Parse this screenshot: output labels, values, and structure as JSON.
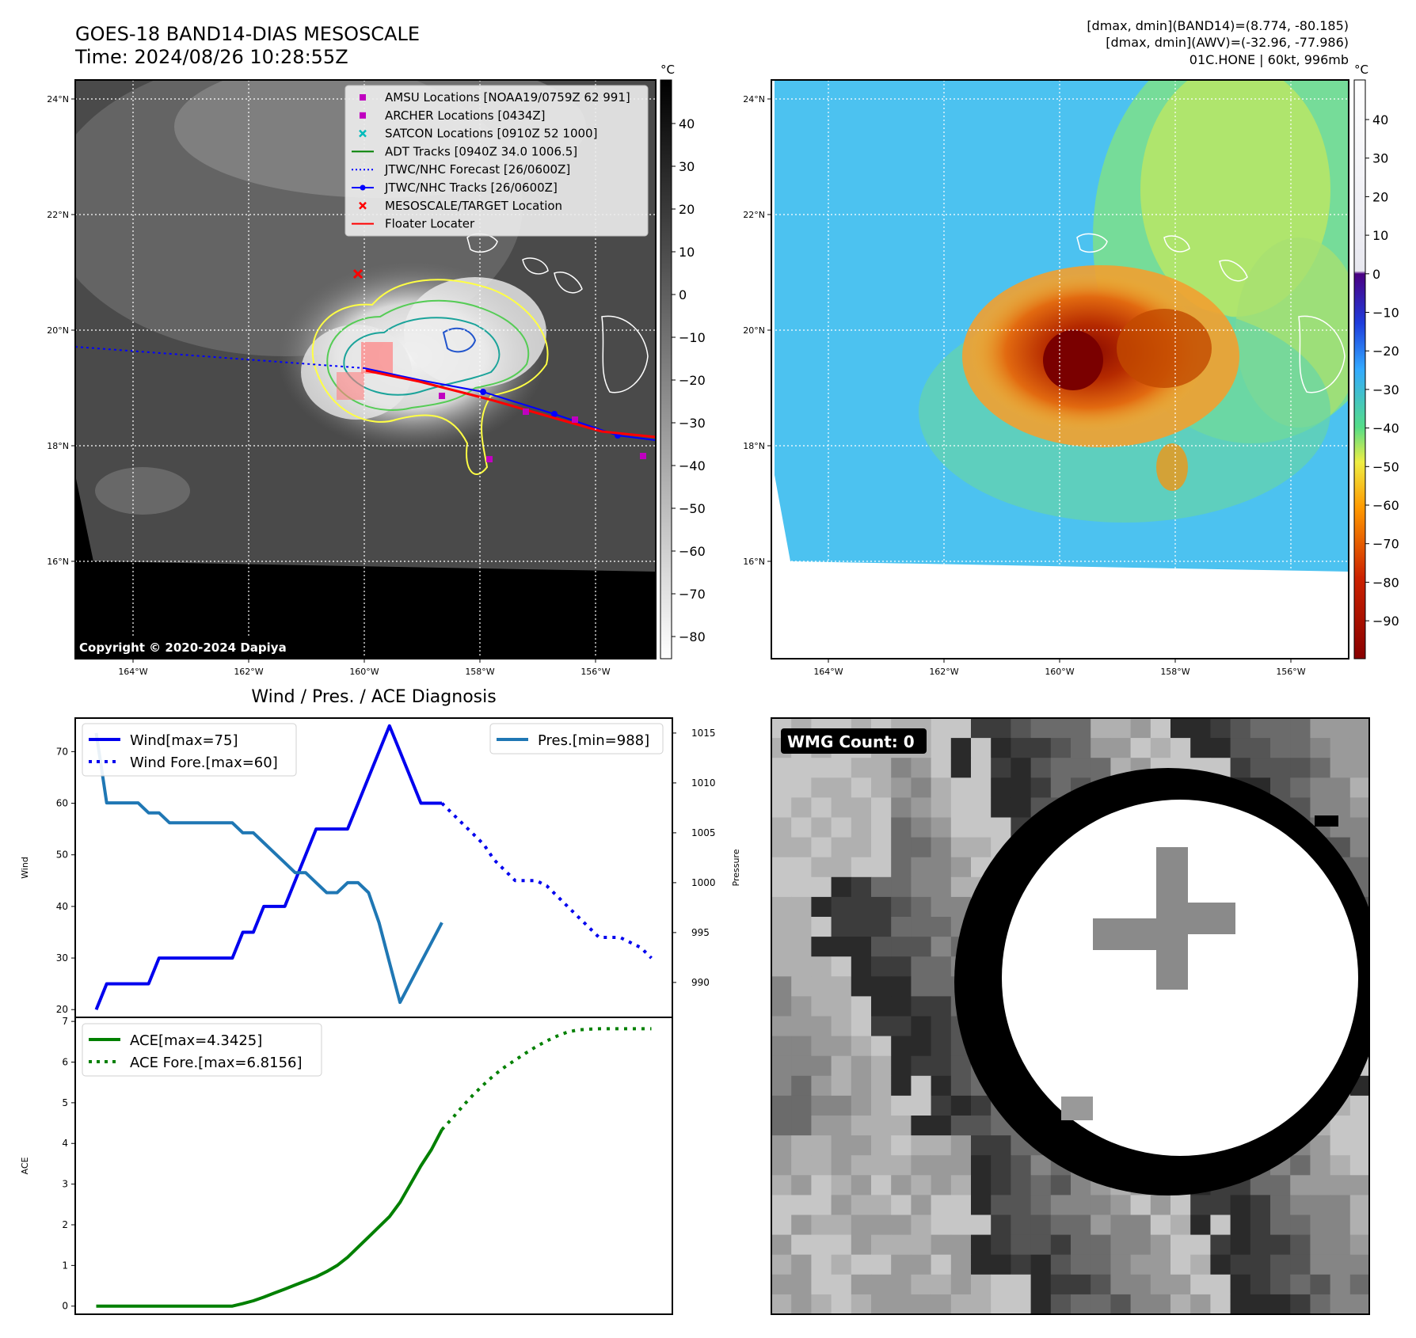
{
  "header": {
    "title_line1": "GOES-18 BAND14-DIAS MESOSCALE",
    "title_line2": "Time: 2024/08/26 10:28:55Z",
    "right_line1": "[dmax, dmin](BAND14)=(8.774, -80.185)",
    "right_line2": "[dmax, dmin](AWV)=(-32.96, -77.986)",
    "right_line3": "01C.HONE | 60kt, 996mb"
  },
  "colors": {
    "wind": "#0000ee",
    "pressure": "#1f77b4",
    "ace": "#008000",
    "adt": "#008000",
    "forecast_track": "#0000ff",
    "best_track": "#0000ff",
    "floater": "#ff0000",
    "target": "#ff0000",
    "amsu": "#c000c0",
    "archer": "#c000c0",
    "satcon": "#00bbbb",
    "contour_yellow": "#ffff44",
    "contour_green": "#55cc55",
    "contour_teal": "#1aa39a",
    "contour_blue": "#2255cc"
  },
  "ir_map": {
    "unit_label": "°C",
    "lat_ticks": [
      "24°N",
      "22°N",
      "20°N",
      "18°N",
      "16°N"
    ],
    "lon_ticks": [
      "164°W",
      "162°W",
      "160°W",
      "158°W",
      "156°W"
    ],
    "colorbar_ticks": [
      "40",
      "30",
      "20",
      "10",
      "0",
      "−10",
      "−20",
      "−30",
      "−40",
      "−50",
      "−60",
      "−70",
      "−80"
    ],
    "copyright": "Copyright © 2020-2024 Dapiya",
    "legend": [
      {
        "label": "AMSU Locations [NOAA19/0759Z 62 991]",
        "symbol": "square",
        "color_key": "amsu"
      },
      {
        "label": "ARCHER Locations [0434Z]",
        "symbol": "square",
        "color_key": "archer"
      },
      {
        "label": "SATCON Locations [0910Z 52 1000]",
        "symbol": "x",
        "color_key": "satcon"
      },
      {
        "label": "ADT Tracks [0940Z 34.0 1006.5]",
        "symbol": "line",
        "color_key": "adt"
      },
      {
        "label": "JTWC/NHC Forecast [26/0600Z]",
        "symbol": "dotted",
        "color_key": "forecast_track"
      },
      {
        "label": "JTWC/NHC Tracks [26/0600Z]",
        "symbol": "line-dot",
        "color_key": "best_track"
      },
      {
        "label": "MESOSCALE/TARGET Location",
        "symbol": "x",
        "color_key": "target"
      },
      {
        "label": "Floater Locater",
        "symbol": "line",
        "color_key": "floater"
      }
    ]
  },
  "awv_map": {
    "unit_label": "°C",
    "lat_ticks": [
      "24°N",
      "22°N",
      "20°N",
      "18°N",
      "16°N"
    ],
    "lon_ticks": [
      "164°W",
      "162°W",
      "160°W",
      "158°W",
      "156°W"
    ],
    "colorbar_ticks": [
      "40",
      "30",
      "20",
      "10",
      "0",
      "−10",
      "−20",
      "−30",
      "−40",
      "−50",
      "−60",
      "−70",
      "−80",
      "−90"
    ]
  },
  "wmg": {
    "label": "WMG Count: 0"
  },
  "chart_data": [
    {
      "type": "line",
      "title": "Wind / Pres. / ACE Diagnosis",
      "ylabel": "Wind",
      "ylabel_right": "Pressure",
      "ylim": [
        18.5,
        76.5
      ],
      "ylim_right": [
        986.5,
        1016.5
      ],
      "xlim": [
        -1,
        56
      ],
      "y_ticks": [
        "20",
        "30",
        "40",
        "50",
        "60",
        "70"
      ],
      "y_ticks_right": [
        "990",
        "995",
        "1000",
        "1005",
        "1010",
        "1015"
      ],
      "series": [
        {
          "name": "Wind[max=75]",
          "axis": "left",
          "style": "solid",
          "color_key": "wind",
          "x": [
            1,
            2,
            3,
            4,
            5,
            6,
            7,
            8,
            9,
            10,
            11,
            12,
            13,
            14,
            15,
            16,
            17,
            18,
            19,
            20,
            21,
            22,
            23,
            24,
            25,
            26,
            27,
            28,
            29,
            30,
            31,
            32,
            33,
            34
          ],
          "values": [
            20,
            25,
            25,
            25,
            25,
            25,
            30,
            30,
            30,
            30,
            30,
            30,
            30,
            30,
            35,
            35,
            40,
            40,
            40,
            45,
            50,
            55,
            55,
            55,
            55,
            60,
            65,
            70,
            75,
            70,
            65,
            60,
            60,
            60
          ]
        },
        {
          "name": "Wind Fore.[max=60]",
          "axis": "left",
          "style": "dotted",
          "color_key": "wind",
          "x": [
            34,
            35,
            36,
            37,
            38,
            39,
            40,
            41,
            42,
            43,
            44,
            45,
            46,
            47,
            48,
            49,
            50,
            51,
            52,
            53,
            54
          ],
          "values": [
            60,
            58,
            56,
            54,
            52,
            49,
            47,
            45,
            45,
            45,
            44,
            42,
            40,
            38,
            36,
            34,
            34,
            34,
            33,
            32,
            30
          ]
        },
        {
          "name": "Pres.[min=988]",
          "axis": "right",
          "style": "solid",
          "color_key": "pressure",
          "x": [
            1,
            2,
            3,
            4,
            5,
            6,
            7,
            8,
            9,
            10,
            11,
            12,
            13,
            14,
            15,
            16,
            17,
            18,
            19,
            20,
            21,
            22,
            23,
            24,
            25,
            26,
            27,
            28,
            29,
            30,
            31,
            32,
            33,
            34
          ],
          "values": [
            1015,
            1008,
            1008,
            1008,
            1008,
            1007,
            1007,
            1006,
            1006,
            1006,
            1006,
            1006,
            1006,
            1006,
            1005,
            1005,
            1004,
            1003,
            1002,
            1001,
            1001,
            1000,
            999,
            999,
            1000,
            1000,
            999,
            996,
            992,
            988,
            990,
            992,
            994,
            996
          ]
        }
      ]
    },
    {
      "type": "line",
      "ylabel": "ACE",
      "ylim": [
        -0.2,
        7.1
      ],
      "xlim": [
        -1,
        56
      ],
      "y_ticks": [
        "0",
        "1",
        "2",
        "3",
        "4",
        "5",
        "6",
        "7"
      ],
      "series": [
        {
          "name": "ACE[max=4.3425]",
          "style": "solid",
          "color_key": "ace",
          "x": [
            1,
            2,
            3,
            4,
            5,
            6,
            7,
            8,
            9,
            10,
            11,
            12,
            13,
            14,
            15,
            16,
            17,
            18,
            19,
            20,
            21,
            22,
            23,
            24,
            25,
            26,
            27,
            28,
            29,
            30,
            31,
            32,
            33,
            34
          ],
          "values": [
            0,
            0,
            0,
            0,
            0,
            0,
            0,
            0,
            0,
            0,
            0,
            0,
            0,
            0,
            0.06,
            0.13,
            0.22,
            0.32,
            0.42,
            0.52,
            0.62,
            0.72,
            0.85,
            1.0,
            1.2,
            1.45,
            1.7,
            1.95,
            2.2,
            2.55,
            3.0,
            3.45,
            3.85,
            4.34
          ]
        },
        {
          "name": "ACE Fore.[max=6.8156]",
          "style": "dotted",
          "color_key": "ace",
          "x": [
            34,
            35,
            36,
            37,
            38,
            39,
            40,
            41,
            42,
            43,
            44,
            45,
            46,
            47,
            48,
            49,
            50,
            51,
            52,
            53,
            54
          ],
          "values": [
            4.34,
            4.62,
            4.92,
            5.2,
            5.45,
            5.68,
            5.88,
            6.05,
            6.22,
            6.38,
            6.52,
            6.64,
            6.74,
            6.79,
            6.81,
            6.82,
            6.82,
            6.82,
            6.82,
            6.82,
            6.82
          ]
        }
      ]
    }
  ]
}
